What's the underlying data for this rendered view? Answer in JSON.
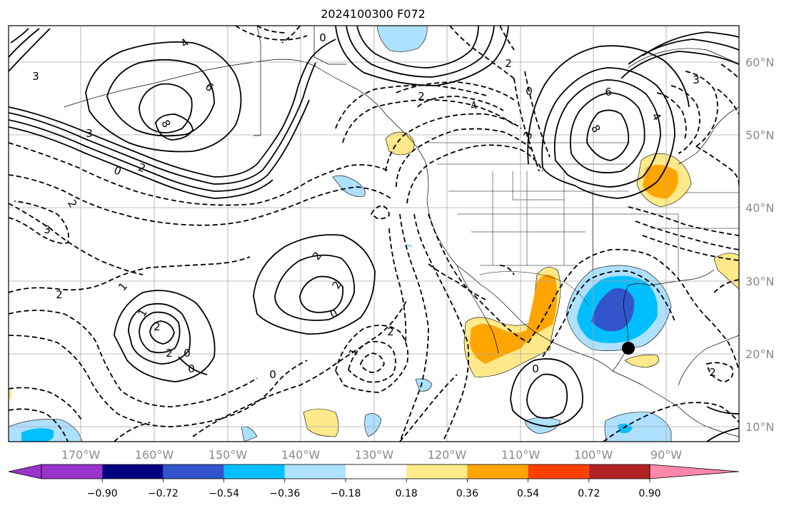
{
  "title": "2024100300 F072",
  "lon_labels": [
    "170°W",
    "160°W",
    "150°W",
    "140°W",
    "130°W",
    "120°W",
    "110°W",
    "100°W",
    "90°W"
  ],
  "lat_labels": [
    "60°N",
    "50°N",
    "40°N",
    "30°N",
    "20°N",
    "10°N"
  ],
  "colorbar": {
    "tick_labels": [
      "−0.90",
      "−0.72",
      "−0.54",
      "−0.36",
      "−0.18",
      "0.18",
      "0.36",
      "0.54",
      "0.72",
      "0.90"
    ],
    "colors": [
      "#9933cc",
      "#000080",
      "#3355cc",
      "#00bfff",
      "#aee0ff",
      "#ffffff",
      "#ffe98a",
      "#ffa500",
      "#ff4000",
      "#b22222",
      "#ff88aa"
    ]
  },
  "contour_labels": [
    "4",
    "3",
    "6",
    "8",
    "0",
    "3",
    "2",
    "0",
    "2",
    "3",
    "1",
    "2",
    "1",
    "2",
    "2",
    "0",
    "0",
    "0",
    "4",
    "2",
    "2",
    "3",
    "0",
    "6",
    "8",
    "4",
    "3",
    "2",
    "0",
    "2",
    "1",
    "0",
    "2",
    "2"
  ],
  "marker": {
    "name": "storm-center",
    "lon": -95.0,
    "lat": 20.6
  },
  "colors": {
    "positive": "#ffa500",
    "negative": "#00bfff"
  }
}
